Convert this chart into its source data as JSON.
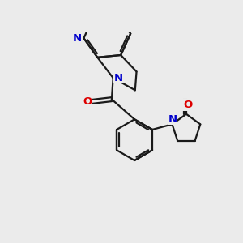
{
  "bg": "#ebebeb",
  "bc": "#1a1a1a",
  "nc": "#0000cc",
  "oc": "#dd0000",
  "lw": 1.6,
  "fs": 9.5,
  "figsize": [
    3.0,
    3.0
  ],
  "dpi": 100,
  "xlim": [
    -2.8,
    3.8
  ],
  "ylim": [
    -3.2,
    3.2
  ]
}
